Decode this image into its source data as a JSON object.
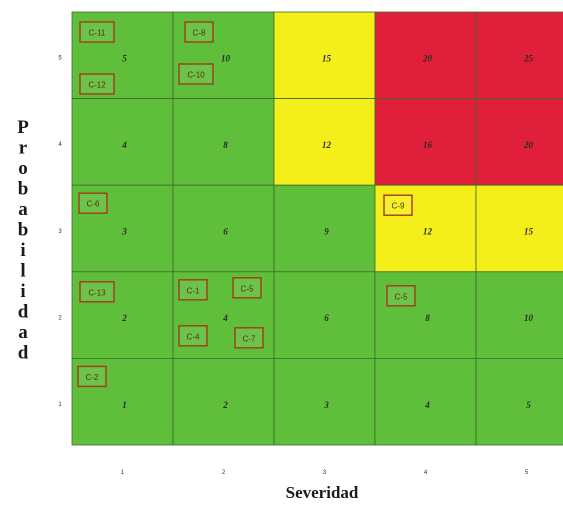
{
  "chart_data": {
    "type": "heatmap",
    "xlabel": "Severidad",
    "ylabel": "Probabilidad",
    "x_ticks": [
      "1",
      "2",
      "3",
      "4",
      "5"
    ],
    "y_ticks": [
      "5",
      "4",
      "3",
      "2",
      "1"
    ],
    "rows": [
      {
        "probability": 5,
        "cells": [
          {
            "severity": 1,
            "value": "5",
            "level": "low"
          },
          {
            "severity": 2,
            "value": "10",
            "level": "low"
          },
          {
            "severity": 3,
            "value": "15",
            "level": "medium"
          },
          {
            "severity": 4,
            "value": "20",
            "level": "high"
          },
          {
            "severity": 5,
            "value": "25",
            "level": "high"
          }
        ]
      },
      {
        "probability": 4,
        "cells": [
          {
            "severity": 1,
            "value": "4",
            "level": "low"
          },
          {
            "severity": 2,
            "value": "8",
            "level": "low"
          },
          {
            "severity": 3,
            "value": "12",
            "level": "medium"
          },
          {
            "severity": 4,
            "value": "16",
            "level": "high"
          },
          {
            "severity": 5,
            "value": "20",
            "level": "high"
          }
        ]
      },
      {
        "probability": 3,
        "cells": [
          {
            "severity": 1,
            "value": "3",
            "level": "low"
          },
          {
            "severity": 2,
            "value": "6",
            "level": "low"
          },
          {
            "severity": 3,
            "value": "9",
            "level": "low"
          },
          {
            "severity": 4,
            "value": "12",
            "level": "medium"
          },
          {
            "severity": 5,
            "value": "15",
            "level": "medium"
          }
        ]
      },
      {
        "probability": 2,
        "cells": [
          {
            "severity": 1,
            "value": "2",
            "level": "low"
          },
          {
            "severity": 2,
            "value": "4",
            "level": "low"
          },
          {
            "severity": 3,
            "value": "6",
            "level": "low"
          },
          {
            "severity": 4,
            "value": "8",
            "level": "low"
          },
          {
            "severity": 5,
            "value": "10",
            "level": "low"
          }
        ]
      },
      {
        "probability": 1,
        "cells": [
          {
            "severity": 1,
            "value": "1",
            "level": "low"
          },
          {
            "severity": 2,
            "value": "2",
            "level": "low"
          },
          {
            "severity": 3,
            "value": "3",
            "level": "low"
          },
          {
            "severity": 4,
            "value": "4",
            "level": "low"
          },
          {
            "severity": 5,
            "value": "5",
            "level": "low"
          }
        ]
      }
    ],
    "colors": {
      "low": "#5fbf3a",
      "medium": "#f4ef1a",
      "high": "#e0203a"
    },
    "tags": [
      {
        "label": "C-11",
        "severity": 1,
        "probability": 5
      },
      {
        "label": "C-12",
        "severity": 1,
        "probability": 5
      },
      {
        "label": "C-8",
        "severity": 2,
        "probability": 5
      },
      {
        "label": "C-10",
        "severity": 2,
        "probability": 5
      },
      {
        "label": "C-6",
        "severity": 1,
        "probability": 3
      },
      {
        "label": "C-9",
        "severity": 4,
        "probability": 3
      },
      {
        "label": "C-13",
        "severity": 1,
        "probability": 2
      },
      {
        "label": "C-1",
        "severity": 2,
        "probability": 2
      },
      {
        "label": "C-5",
        "severity": 2,
        "probability": 2
      },
      {
        "label": "C-4",
        "severity": 2,
        "probability": 2
      },
      {
        "label": "C-7",
        "severity": 2,
        "probability": 2
      },
      {
        "label": "C-5",
        "severity": 4,
        "probability": 2
      },
      {
        "label": "C-2",
        "severity": 1,
        "probability": 1
      }
    ]
  }
}
